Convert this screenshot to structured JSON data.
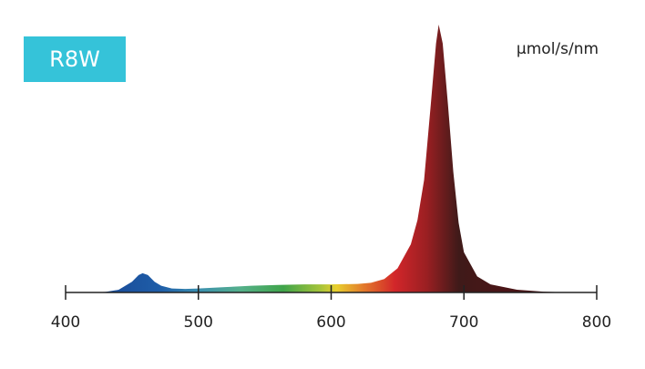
{
  "chart_data": {
    "type": "area",
    "title": "R8W",
    "y_label": "µmol/s/nm",
    "x": [
      420,
      430,
      440,
      450,
      455,
      458,
      462,
      467,
      472,
      480,
      490,
      500,
      520,
      540,
      560,
      580,
      600,
      620,
      630,
      640,
      650,
      660,
      665,
      670,
      675,
      679,
      681,
      684,
      688,
      692,
      696,
      700,
      710,
      720,
      740,
      760,
      780
    ],
    "values": [
      0,
      0.2,
      1,
      4,
      6.5,
      7.2,
      6.5,
      4,
      2.5,
      1.5,
      1.3,
      1.5,
      2,
      2.5,
      2.8,
      3,
      3,
      3.2,
      3.6,
      5,
      9,
      18,
      27,
      42,
      70,
      93,
      100,
      93,
      70,
      45,
      26,
      15,
      6,
      3,
      1,
      0.3,
      0
    ],
    "xlim": [
      400,
      800
    ],
    "xticks": [
      400,
      500,
      600,
      700,
      800
    ],
    "ylim": [
      0,
      100
    ]
  }
}
